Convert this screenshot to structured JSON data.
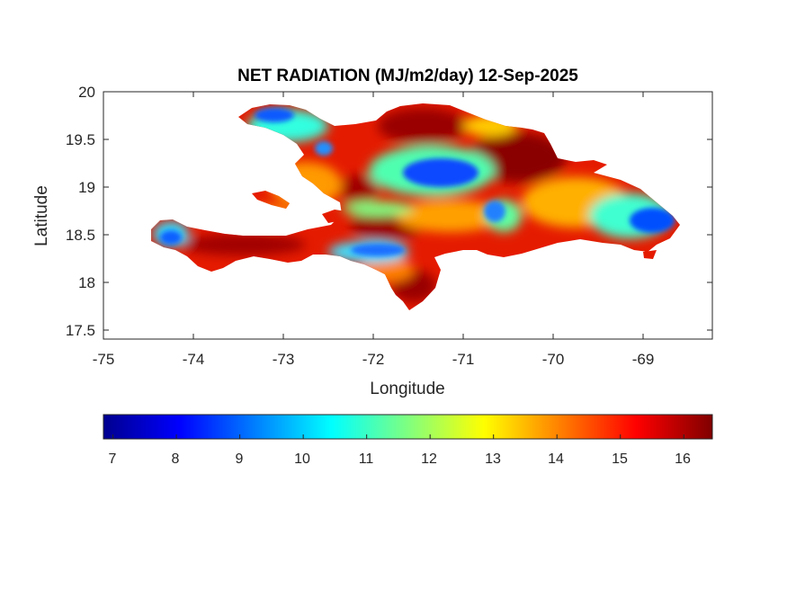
{
  "title": "NET RADIATION (MJ/m2/day) 12-Sep-2025",
  "chart_data": {
    "type": "heatmap",
    "title": "NET RADIATION (MJ/m2/day) 12-Sep-2025",
    "xlabel": "Longitude",
    "ylabel": "Latitude",
    "xlim": [
      -75,
      -68.25
    ],
    "ylim": [
      17.4,
      20
    ],
    "x_ticks": [
      "-75",
      "-74",
      "-73",
      "-72",
      "-71",
      "-70",
      "-69"
    ],
    "y_ticks": [
      "20",
      "19.5",
      "19",
      "18.5",
      "18",
      "17.5"
    ],
    "colormap": "jet",
    "colorbar": {
      "orientation": "horizontal",
      "range": [
        6.85,
        16.45
      ],
      "ticks": [
        "7",
        "8",
        "9",
        "10",
        "11",
        "12",
        "13",
        "14",
        "15",
        "16"
      ]
    },
    "ocean_color": "#ffffff"
  }
}
